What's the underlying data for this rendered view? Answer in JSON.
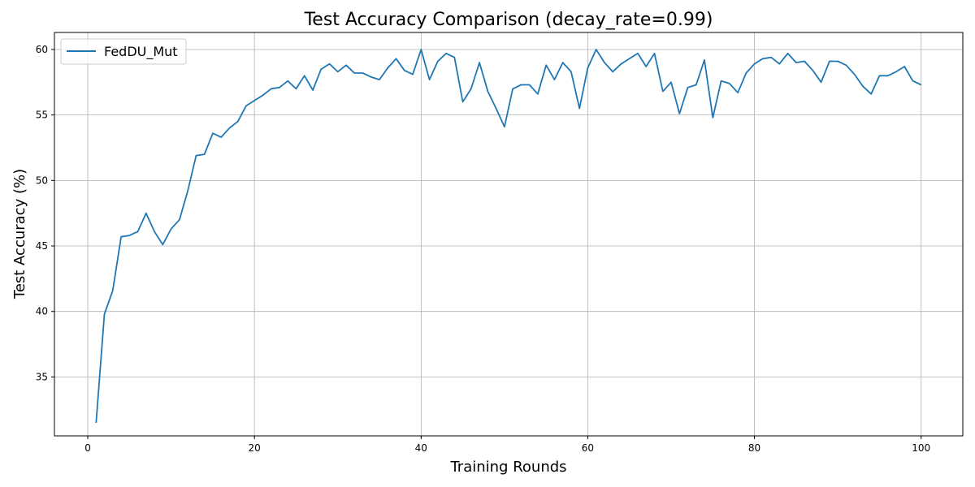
{
  "chart_data": {
    "type": "line",
    "title": "Test Accuracy Comparison (decay_rate=0.99)",
    "xlabel": "Training Rounds",
    "ylabel": "Test Accuracy (%)",
    "xlim": [
      -4,
      105
    ],
    "ylim": [
      30.5,
      61.3
    ],
    "xticks": [
      0,
      20,
      40,
      60,
      80,
      100
    ],
    "yticks": [
      35,
      40,
      45,
      50,
      55,
      60
    ],
    "grid": true,
    "legend_position": "upper-left",
    "series": [
      {
        "name": "FedDU_Mut",
        "color": "#1f77b4",
        "x": [
          1,
          2,
          3,
          4,
          5,
          6,
          7,
          8,
          9,
          10,
          11,
          12,
          13,
          14,
          15,
          16,
          17,
          18,
          19,
          20,
          21,
          22,
          23,
          24,
          25,
          26,
          27,
          28,
          29,
          30,
          31,
          32,
          33,
          34,
          35,
          36,
          37,
          38,
          39,
          40,
          41,
          42,
          43,
          44,
          45,
          46,
          47,
          48,
          49,
          50,
          51,
          52,
          53,
          54,
          55,
          56,
          57,
          58,
          59,
          60,
          61,
          62,
          63,
          64,
          65,
          66,
          67,
          68,
          69,
          70,
          71,
          72,
          73,
          74,
          75,
          76,
          77,
          78,
          79,
          80,
          81,
          82,
          83,
          84,
          85,
          86,
          87,
          88,
          89,
          90,
          91,
          92,
          93,
          94,
          95,
          96,
          97,
          98,
          99,
          100
        ],
        "y": [
          31.5,
          39.8,
          41.6,
          45.7,
          45.8,
          46.1,
          47.5,
          46.1,
          45.1,
          46.3,
          47.0,
          49.2,
          51.9,
          52.0,
          53.6,
          53.3,
          54.0,
          54.5,
          55.7,
          56.1,
          56.5,
          57.0,
          57.1,
          57.6,
          57.0,
          58.0,
          56.9,
          58.5,
          58.9,
          58.3,
          58.8,
          58.2,
          58.2,
          57.9,
          57.7,
          58.6,
          59.3,
          58.4,
          58.1,
          60.0,
          57.7,
          59.1,
          59.7,
          59.4,
          56.0,
          57.0,
          59.0,
          56.8,
          55.5,
          54.1,
          57.0,
          57.3,
          57.3,
          56.6,
          58.8,
          57.7,
          59.0,
          58.3,
          55.5,
          58.6,
          60.0,
          59.0,
          58.3,
          58.9,
          59.3,
          59.7,
          58.7,
          59.7,
          56.8,
          57.5,
          55.1,
          57.1,
          57.3,
          59.2,
          54.8,
          57.6,
          57.4,
          56.7,
          58.2,
          58.9,
          59.3,
          59.4,
          58.9,
          59.7,
          59.0,
          59.1,
          58.4,
          57.5,
          59.1,
          59.1,
          58.8,
          58.1,
          57.2,
          56.6,
          58.0,
          58.0,
          58.3,
          58.7,
          57.6,
          57.3
        ]
      }
    ]
  }
}
